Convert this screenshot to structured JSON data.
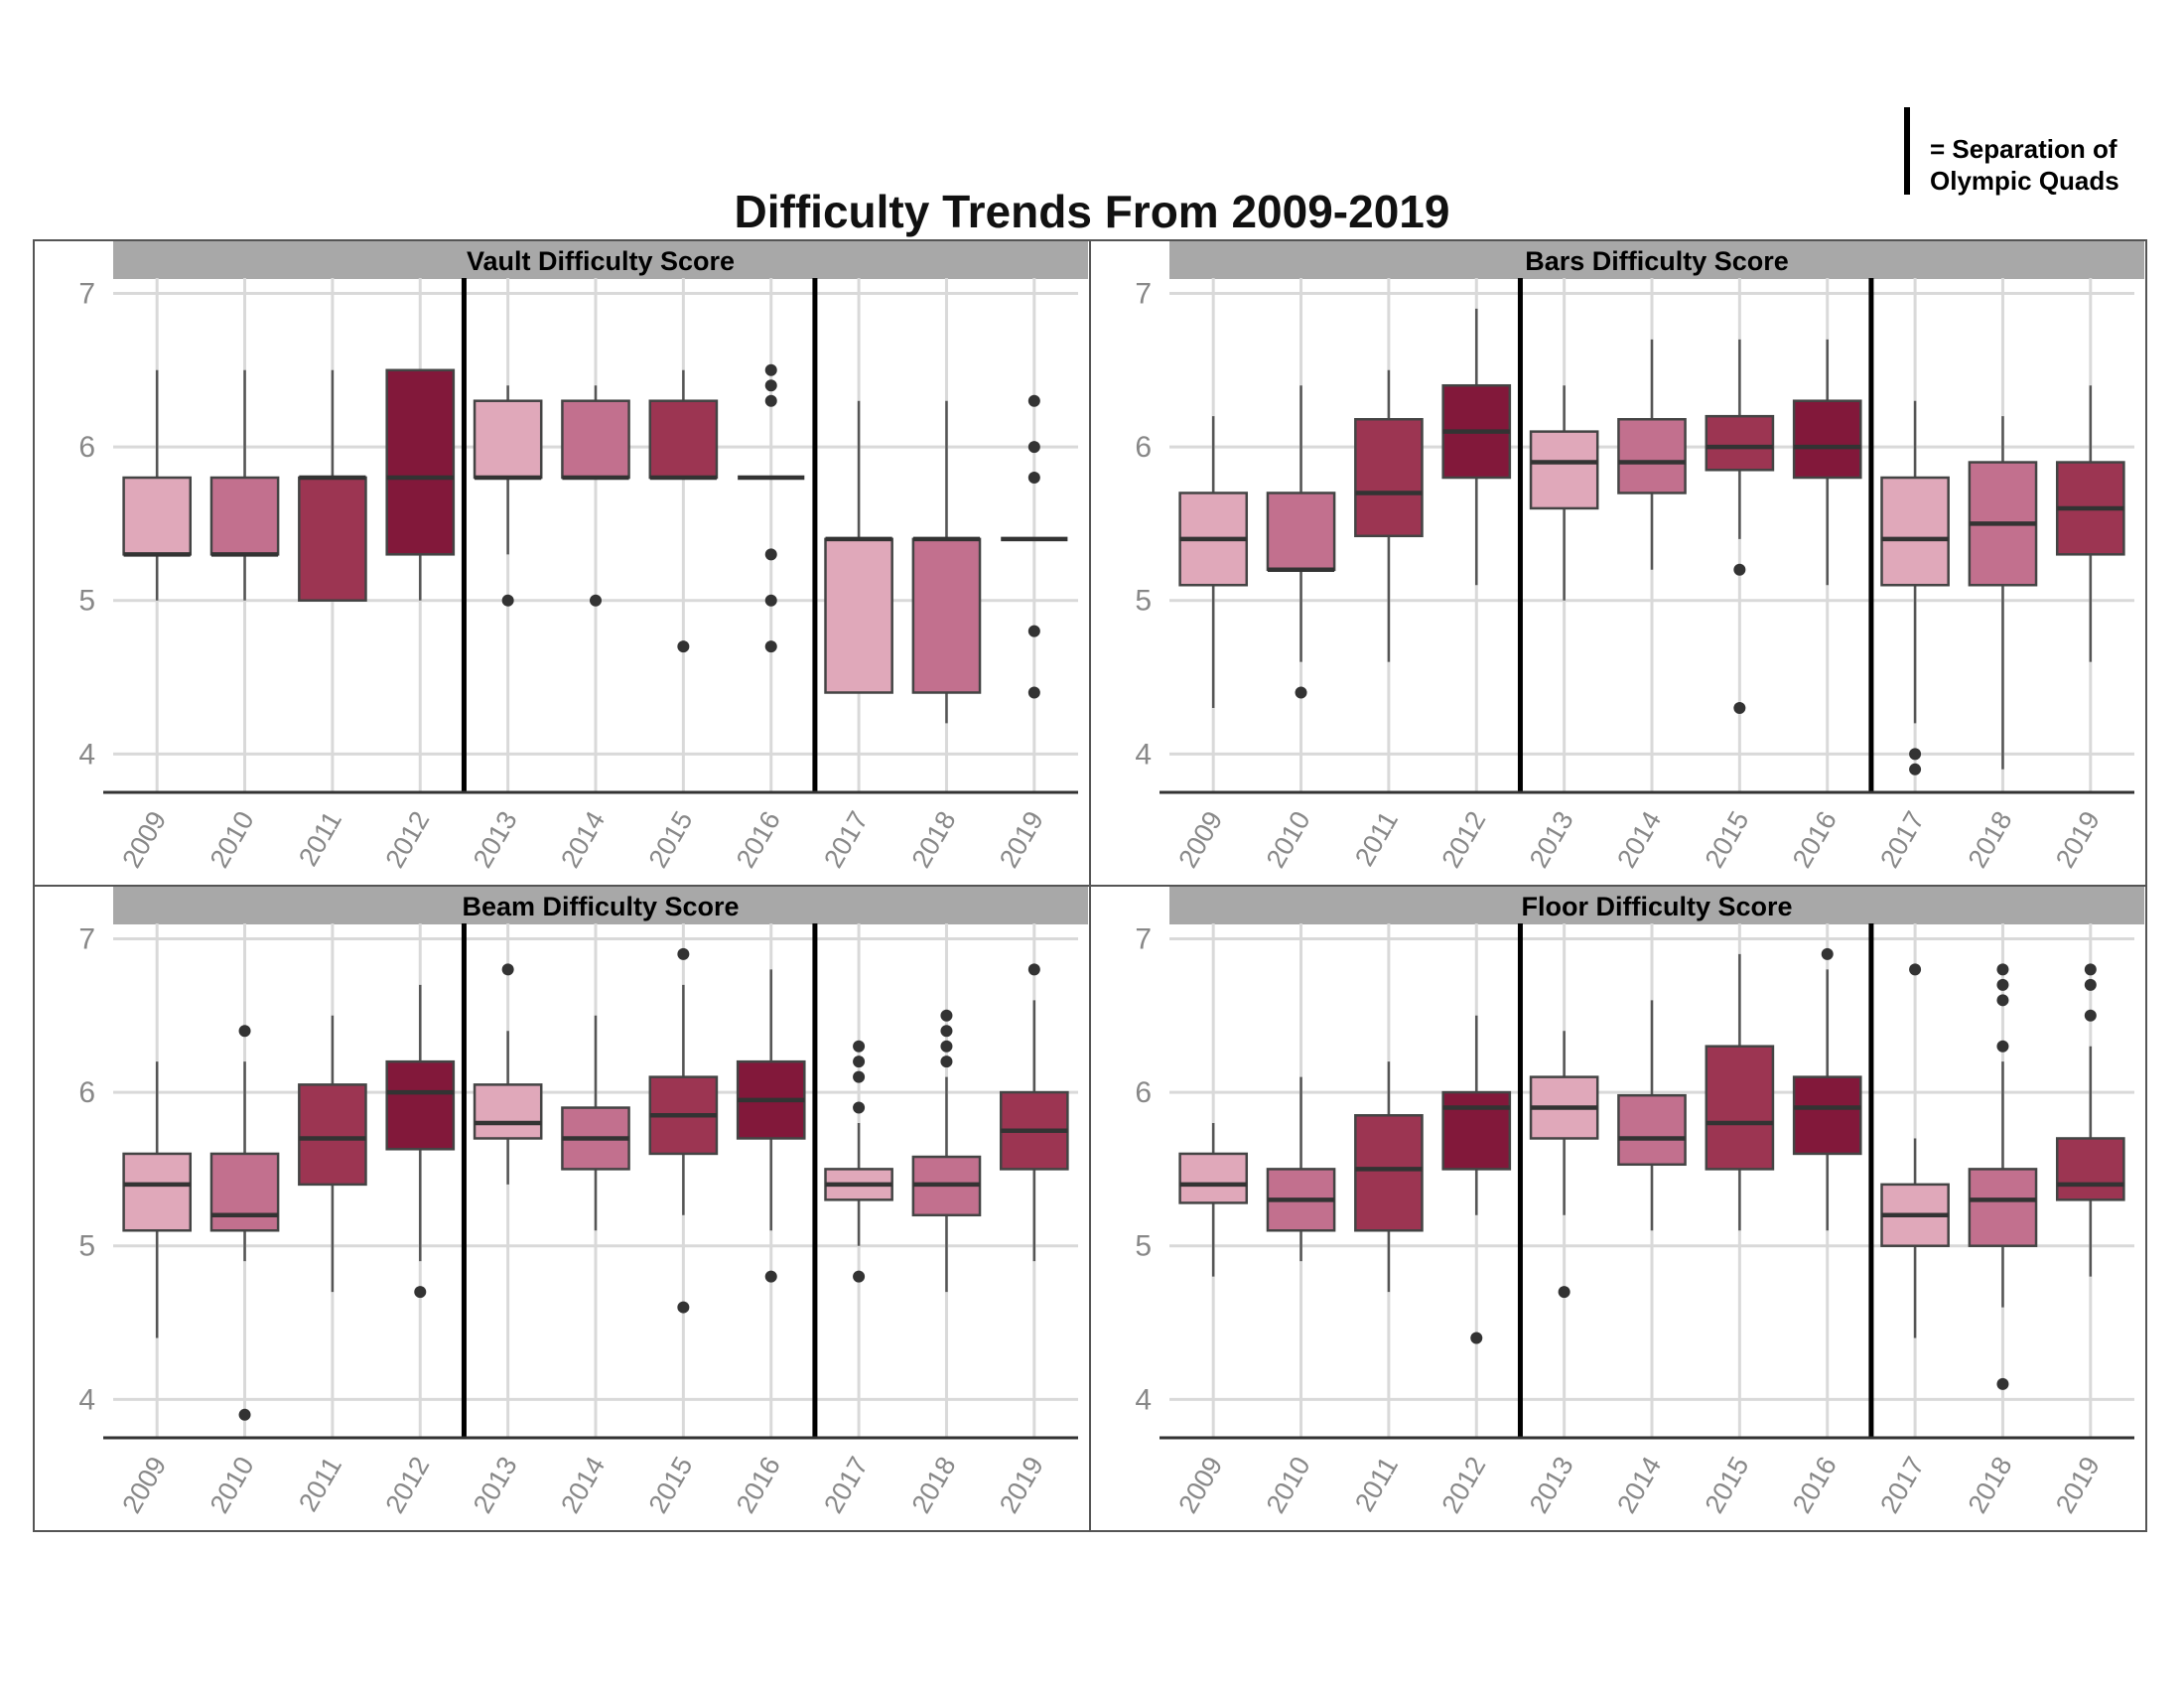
{
  "title": "Difficulty Trends From 2009-2019",
  "legend": {
    "label": "= Separation of\nOlympic Quads"
  },
  "colors": {
    "2009": "#e0a8ba",
    "2010": "#c2708e",
    "2011": "#9c3552",
    "2012": "#82183a",
    "2013": "#e0a8ba",
    "2014": "#c2708e",
    "2015": "#9c3552",
    "2016": "#82183a",
    "2017": "#e0a8ba",
    "2018": "#c2708e",
    "2019": "#9c3552",
    "strip": "#a8a8a8",
    "grid": "#d9d9d9",
    "outlier": "#333333"
  },
  "chart_data": [
    {
      "type": "box",
      "title": "Vault Difficulty Score",
      "categories": [
        "2009",
        "2010",
        "2011",
        "2012",
        "2013",
        "2014",
        "2015",
        "2016",
        "2017",
        "2018",
        "2019"
      ],
      "ylim": [
        3.75,
        7.1
      ],
      "yticks": [
        4,
        5,
        6,
        7
      ],
      "quad_separators_after": [
        "2012",
        "2016"
      ],
      "boxes": [
        {
          "x": "2009",
          "min": 5.0,
          "q1": 5.3,
          "median": 5.3,
          "q3": 5.8,
          "max": 6.5,
          "outliers": []
        },
        {
          "x": "2010",
          "min": 5.0,
          "q1": 5.3,
          "median": 5.3,
          "q3": 5.8,
          "max": 6.5,
          "outliers": []
        },
        {
          "x": "2011",
          "min": 5.0,
          "q1": 5.0,
          "median": 5.8,
          "q3": 5.8,
          "max": 6.5,
          "outliers": []
        },
        {
          "x": "2012",
          "min": 5.0,
          "q1": 5.3,
          "median": 5.8,
          "q3": 6.5,
          "max": 6.5,
          "outliers": []
        },
        {
          "x": "2013",
          "min": 5.3,
          "q1": 5.8,
          "median": 5.8,
          "q3": 6.3,
          "max": 6.4,
          "outliers": [
            5.0
          ]
        },
        {
          "x": "2014",
          "min": 5.8,
          "q1": 5.8,
          "median": 5.8,
          "q3": 6.3,
          "max": 6.4,
          "outliers": [
            5.0
          ]
        },
        {
          "x": "2015",
          "min": 5.8,
          "q1": 5.8,
          "median": 5.8,
          "q3": 6.3,
          "max": 6.5,
          "outliers": [
            4.7
          ]
        },
        {
          "x": "2016",
          "min": 5.8,
          "q1": 5.8,
          "median": 5.8,
          "q3": 5.8,
          "max": 5.8,
          "outliers": [
            6.5,
            6.4,
            6.3,
            5.3,
            5.0,
            4.7
          ]
        },
        {
          "x": "2017",
          "min": 4.4,
          "q1": 4.4,
          "median": 5.4,
          "q3": 5.4,
          "max": 6.3,
          "outliers": []
        },
        {
          "x": "2018",
          "min": 4.2,
          "q1": 4.4,
          "median": 5.4,
          "q3": 5.4,
          "max": 6.3,
          "outliers": []
        },
        {
          "x": "2019",
          "min": 5.4,
          "q1": 5.4,
          "median": 5.4,
          "q3": 5.4,
          "max": 5.4,
          "outliers": [
            6.3,
            6.0,
            5.8,
            4.8,
            4.4
          ]
        }
      ]
    },
    {
      "type": "box",
      "title": "Bars Difficulty Score",
      "categories": [
        "2009",
        "2010",
        "2011",
        "2012",
        "2013",
        "2014",
        "2015",
        "2016",
        "2017",
        "2018",
        "2019"
      ],
      "ylim": [
        3.75,
        7.1
      ],
      "yticks": [
        4,
        5,
        6,
        7
      ],
      "quad_separators_after": [
        "2012",
        "2016"
      ],
      "boxes": [
        {
          "x": "2009",
          "min": 4.3,
          "q1": 5.1,
          "median": 5.4,
          "q3": 5.7,
          "max": 6.2,
          "outliers": []
        },
        {
          "x": "2010",
          "min": 4.6,
          "q1": 5.2,
          "median": 5.2,
          "q3": 5.7,
          "max": 6.4,
          "outliers": [
            4.4
          ]
        },
        {
          "x": "2011",
          "min": 4.6,
          "q1": 5.42,
          "median": 5.7,
          "q3": 6.18,
          "max": 6.5,
          "outliers": []
        },
        {
          "x": "2012",
          "min": 5.1,
          "q1": 5.8,
          "median": 6.1,
          "q3": 6.4,
          "max": 6.9,
          "outliers": []
        },
        {
          "x": "2013",
          "min": 5.0,
          "q1": 5.6,
          "median": 5.9,
          "q3": 6.1,
          "max": 6.4,
          "outliers": []
        },
        {
          "x": "2014",
          "min": 5.2,
          "q1": 5.7,
          "median": 5.9,
          "q3": 6.18,
          "max": 6.7,
          "outliers": []
        },
        {
          "x": "2015",
          "min": 5.4,
          "q1": 5.85,
          "median": 6.0,
          "q3": 6.2,
          "max": 6.7,
          "outliers": [
            5.2,
            4.3
          ]
        },
        {
          "x": "2016",
          "min": 5.1,
          "q1": 5.8,
          "median": 6.0,
          "q3": 6.3,
          "max": 6.7,
          "outliers": []
        },
        {
          "x": "2017",
          "min": 4.2,
          "q1": 5.1,
          "median": 5.4,
          "q3": 5.8,
          "max": 6.3,
          "outliers": [
            4.0,
            3.9
          ]
        },
        {
          "x": "2018",
          "min": 3.9,
          "q1": 5.1,
          "median": 5.5,
          "q3": 5.9,
          "max": 6.2,
          "outliers": []
        },
        {
          "x": "2019",
          "min": 4.6,
          "q1": 5.3,
          "median": 5.6,
          "q3": 5.9,
          "max": 6.4,
          "outliers": []
        }
      ]
    },
    {
      "type": "box",
      "title": "Beam Difficulty Score",
      "categories": [
        "2009",
        "2010",
        "2011",
        "2012",
        "2013",
        "2014",
        "2015",
        "2016",
        "2017",
        "2018",
        "2019"
      ],
      "ylim": [
        3.75,
        7.1
      ],
      "yticks": [
        4,
        5,
        6,
        7
      ],
      "quad_separators_after": [
        "2012",
        "2016"
      ],
      "boxes": [
        {
          "x": "2009",
          "min": 4.4,
          "q1": 5.1,
          "median": 5.4,
          "q3": 5.6,
          "max": 6.2,
          "outliers": []
        },
        {
          "x": "2010",
          "min": 4.9,
          "q1": 5.1,
          "median": 5.2,
          "q3": 5.6,
          "max": 6.2,
          "outliers": [
            6.4,
            3.9
          ]
        },
        {
          "x": "2011",
          "min": 4.7,
          "q1": 5.4,
          "median": 5.7,
          "q3": 6.05,
          "max": 6.5,
          "outliers": []
        },
        {
          "x": "2012",
          "min": 4.9,
          "q1": 5.63,
          "median": 6.0,
          "q3": 6.2,
          "max": 6.7,
          "outliers": [
            4.7
          ]
        },
        {
          "x": "2013",
          "min": 5.4,
          "q1": 5.7,
          "median": 5.8,
          "q3": 6.05,
          "max": 6.4,
          "outliers": [
            6.8
          ]
        },
        {
          "x": "2014",
          "min": 5.1,
          "q1": 5.5,
          "median": 5.7,
          "q3": 5.9,
          "max": 6.5,
          "outliers": []
        },
        {
          "x": "2015",
          "min": 5.2,
          "q1": 5.6,
          "median": 5.85,
          "q3": 6.1,
          "max": 6.7,
          "outliers": [
            6.9,
            4.6
          ]
        },
        {
          "x": "2016",
          "min": 5.1,
          "q1": 5.7,
          "median": 5.95,
          "q3": 6.2,
          "max": 6.8,
          "outliers": [
            4.8
          ]
        },
        {
          "x": "2017",
          "min": 5.0,
          "q1": 5.3,
          "median": 5.4,
          "q3": 5.5,
          "max": 5.8,
          "outliers": [
            6.3,
            6.2,
            6.1,
            5.9,
            4.8
          ]
        },
        {
          "x": "2018",
          "min": 4.7,
          "q1": 5.2,
          "median": 5.4,
          "q3": 5.58,
          "max": 6.1,
          "outliers": [
            6.5,
            6.4,
            6.3,
            6.2
          ]
        },
        {
          "x": "2019",
          "min": 4.9,
          "q1": 5.5,
          "median": 5.75,
          "q3": 6.0,
          "max": 6.6,
          "outliers": [
            6.8
          ]
        }
      ]
    },
    {
      "type": "box",
      "title": "Floor Difficulty Score",
      "categories": [
        "2009",
        "2010",
        "2011",
        "2012",
        "2013",
        "2014",
        "2015",
        "2016",
        "2017",
        "2018",
        "2019"
      ],
      "ylim": [
        3.75,
        7.1
      ],
      "yticks": [
        4,
        5,
        6,
        7
      ],
      "quad_separators_after": [
        "2012",
        "2016"
      ],
      "boxes": [
        {
          "x": "2009",
          "min": 4.8,
          "q1": 5.28,
          "median": 5.4,
          "q3": 5.6,
          "max": 5.8,
          "outliers": []
        },
        {
          "x": "2010",
          "min": 4.9,
          "q1": 5.1,
          "median": 5.3,
          "q3": 5.5,
          "max": 6.1,
          "outliers": []
        },
        {
          "x": "2011",
          "min": 4.7,
          "q1": 5.1,
          "median": 5.5,
          "q3": 5.85,
          "max": 6.2,
          "outliers": []
        },
        {
          "x": "2012",
          "min": 5.2,
          "q1": 5.5,
          "median": 5.9,
          "q3": 6.0,
          "max": 6.5,
          "outliers": [
            4.4
          ]
        },
        {
          "x": "2013",
          "min": 5.2,
          "q1": 5.7,
          "median": 5.9,
          "q3": 6.1,
          "max": 6.4,
          "outliers": [
            4.7
          ]
        },
        {
          "x": "2014",
          "min": 5.1,
          "q1": 5.53,
          "median": 5.7,
          "q3": 5.98,
          "max": 6.6,
          "outliers": []
        },
        {
          "x": "2015",
          "min": 5.1,
          "q1": 5.5,
          "median": 5.8,
          "q3": 6.3,
          "max": 6.9,
          "outliers": []
        },
        {
          "x": "2016",
          "min": 5.1,
          "q1": 5.6,
          "median": 5.9,
          "q3": 6.1,
          "max": 6.8,
          "outliers": [
            6.9
          ]
        },
        {
          "x": "2017",
          "min": 4.4,
          "q1": 5.0,
          "median": 5.2,
          "q3": 5.4,
          "max": 5.7,
          "outliers": [
            6.8
          ]
        },
        {
          "x": "2018",
          "min": 4.6,
          "q1": 5.0,
          "median": 5.3,
          "q3": 5.5,
          "max": 6.2,
          "outliers": [
            6.8,
            6.7,
            6.6,
            6.3,
            4.1
          ]
        },
        {
          "x": "2019",
          "min": 4.8,
          "q1": 5.3,
          "median": 5.4,
          "q3": 5.7,
          "max": 6.3,
          "outliers": [
            6.8,
            6.7,
            6.5
          ]
        }
      ]
    }
  ]
}
